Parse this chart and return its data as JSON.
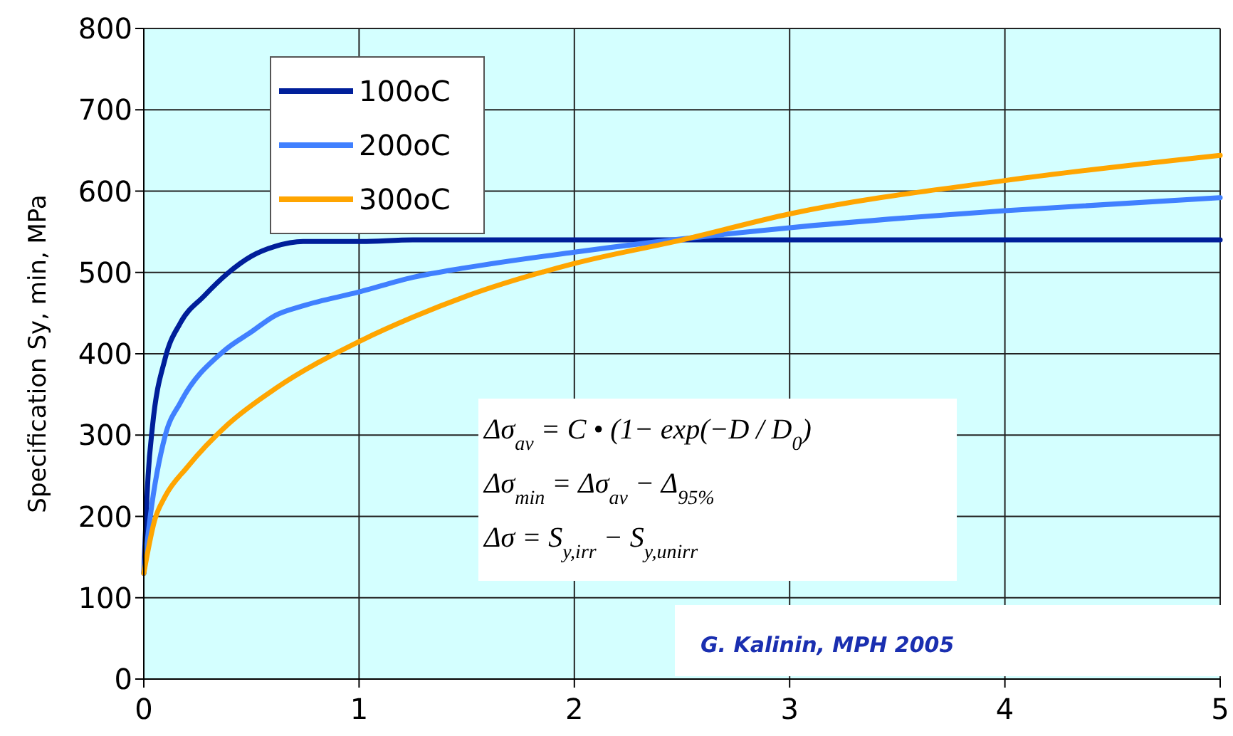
{
  "chart_data": {
    "type": "line",
    "ylabel": "Specification Sy, min, MPa",
    "xlim": [
      0,
      5
    ],
    "xticks": [
      0,
      1,
      2,
      3,
      4,
      5
    ],
    "ylim": [
      0,
      800
    ],
    "yticks": [
      0,
      100,
      200,
      300,
      400,
      500,
      600,
      700,
      800
    ],
    "grid": true,
    "legend": "top left",
    "line_style": "solid",
    "marker": "none",
    "series": [
      {
        "name": "100oC",
        "color": "#001f9a",
        "x": [
          0,
          0.02,
          0.04,
          0.1,
          0.17,
          0.28,
          0.39,
          0.5,
          0.61,
          0.74,
          1,
          1.25,
          5
        ],
        "values": [
          130,
          250,
          310,
          395,
          438,
          471,
          499,
          520,
          532,
          538,
          538,
          540,
          540
        ]
      },
      {
        "name": "200oC",
        "color": "#4080ff",
        "x": [
          0,
          0.03,
          0.1,
          0.17,
          0.37,
          0.5,
          0.61,
          0.74,
          1,
          1.25,
          1.5,
          2,
          3,
          4,
          5
        ],
        "values": [
          130,
          200,
          300,
          340,
          403,
          427,
          447,
          459,
          476,
          494,
          506,
          525,
          555,
          576,
          592
        ]
      },
      {
        "name": "300oC",
        "color": "#ffa500",
        "x": [
          0,
          0.05,
          0.1,
          0.2,
          0.39,
          0.61,
          1,
          1.25,
          1.5,
          2,
          2.5,
          3,
          4,
          5
        ],
        "values": [
          130,
          195,
          225,
          260,
          313,
          357,
          415,
          445,
          471,
          511,
          540,
          572,
          613,
          644
        ]
      }
    ],
    "annotations": [
      "Δσ$_{av}$ = C • (1− exp(−D / D$_{0}$)",
      "Δσ$_{min}$ = Δσ$_{av}$ − Δ$_{95%}$",
      "Δσ = S$_{y,irr}$ − S$_{y,unirr}$",
      "G. Kalinin, MPH 2005"
    ]
  }
}
